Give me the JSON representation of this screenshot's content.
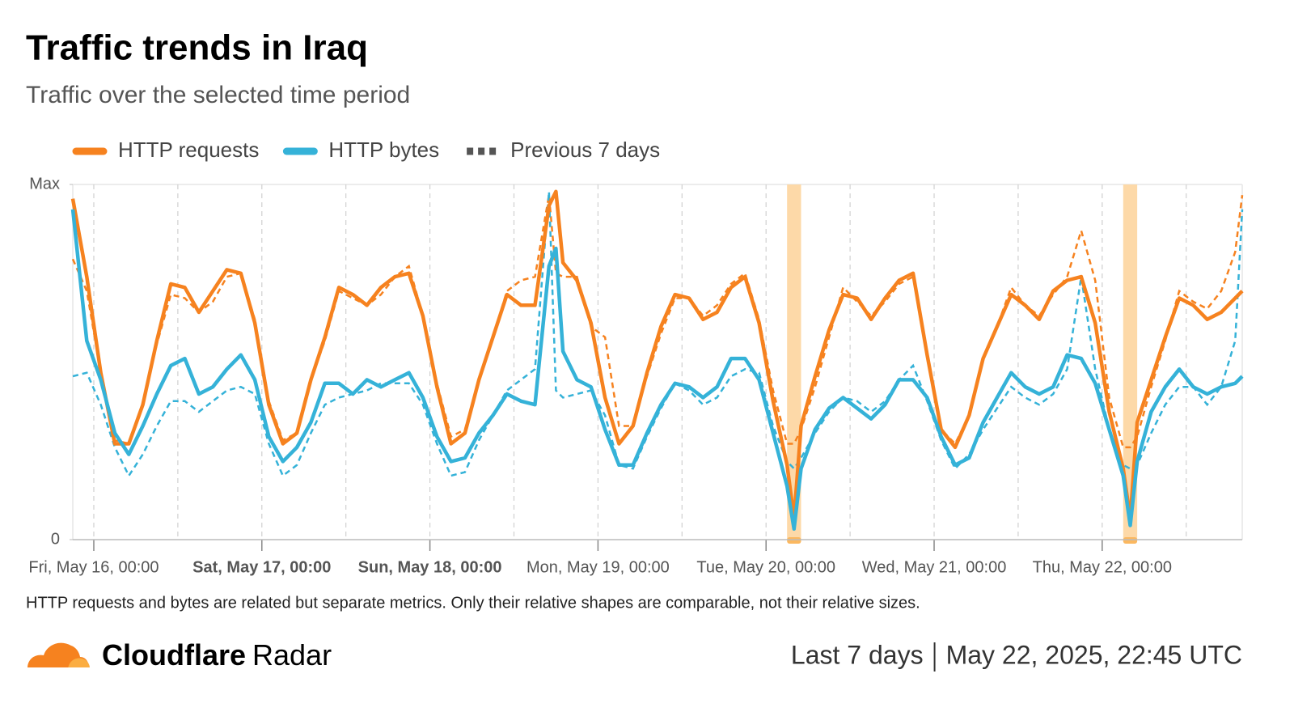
{
  "chart_data": {
    "type": "line",
    "title": "Traffic trends in Iraq",
    "subtitle": "Traffic over the selected time period",
    "previous_label": "Previous 7 days",
    "note": "HTTP requests and bytes are related but separate metrics. Only their relative shapes are comparable, not their relative sizes.",
    "brand": {
      "bold": "Cloudflare",
      "regular": "Radar"
    },
    "period": "Last 7 days",
    "timestamp": "May 22, 2025, 22:45 UTC",
    "xlim": [
      -3,
      164
    ],
    "ylim": [
      0,
      1
    ],
    "yticks": [
      0,
      {
        "value": 1,
        "label": "Max"
      }
    ],
    "xticks": [
      {
        "value": 0,
        "label": "Fri, May 16, 00:00"
      },
      {
        "value": 24,
        "label": "Sat, May 17, 00:00",
        "bold": true
      },
      {
        "value": 48,
        "label": "Sun, May 18, 00:00",
        "bold": true
      },
      {
        "value": 72,
        "label": "Mon, May 19, 00:00"
      },
      {
        "value": 96,
        "label": "Tue, May 20, 00:00"
      },
      {
        "value": 120,
        "label": "Wed, May 21, 00:00"
      },
      {
        "value": 144,
        "label": "Thu, May 22, 00:00"
      }
    ],
    "grid": true,
    "highlights": [
      [
        99,
        101
      ],
      [
        147,
        149
      ]
    ],
    "highlight_color": "#fdd9a8",
    "x": [
      -3,
      -1,
      1,
      3,
      5,
      7,
      9,
      11,
      13,
      15,
      17,
      19,
      21,
      23,
      25,
      27,
      29,
      31,
      33,
      35,
      37,
      39,
      41,
      43,
      45,
      47,
      49,
      51,
      53,
      55,
      57,
      59,
      61,
      63,
      65,
      66,
      67,
      69,
      71,
      73,
      75,
      77,
      79,
      81,
      83,
      85,
      87,
      89,
      91,
      93,
      95,
      97,
      99,
      100,
      101,
      103,
      105,
      107,
      109,
      111,
      113,
      115,
      117,
      119,
      121,
      123,
      125,
      127,
      129,
      131,
      133,
      135,
      137,
      139,
      141,
      143,
      145,
      147,
      148,
      149,
      151,
      153,
      155,
      157,
      159,
      161,
      163,
      164
    ],
    "series": [
      {
        "name": "HTTP requests",
        "color": "#f6821f",
        "values": [
          0.96,
          0.74,
          0.47,
          0.27,
          0.27,
          0.38,
          0.56,
          0.72,
          0.71,
          0.64,
          0.7,
          0.76,
          0.75,
          0.61,
          0.38,
          0.27,
          0.3,
          0.45,
          0.57,
          0.71,
          0.69,
          0.66,
          0.71,
          0.74,
          0.75,
          0.63,
          0.43,
          0.27,
          0.3,
          0.45,
          0.57,
          0.69,
          0.66,
          0.66,
          0.94,
          0.98,
          0.78,
          0.73,
          0.61,
          0.4,
          0.27,
          0.32,
          0.47,
          0.6,
          0.69,
          0.68,
          0.62,
          0.64,
          0.71,
          0.74,
          0.61,
          0.39,
          0.21,
          0.06,
          0.32,
          0.46,
          0.59,
          0.69,
          0.68,
          0.62,
          0.68,
          0.73,
          0.75,
          0.52,
          0.31,
          0.26,
          0.35,
          0.51,
          0.6,
          0.69,
          0.66,
          0.62,
          0.7,
          0.73,
          0.74,
          0.61,
          0.36,
          0.2,
          0.06,
          0.33,
          0.45,
          0.57,
          0.68,
          0.66,
          0.62,
          0.64,
          0.68,
          0.7
        ],
        "previous_values": [
          0.79,
          0.7,
          0.47,
          0.28,
          0.27,
          0.38,
          0.55,
          0.69,
          0.68,
          0.64,
          0.67,
          0.74,
          0.75,
          0.62,
          0.39,
          0.28,
          0.3,
          0.45,
          0.56,
          0.7,
          0.68,
          0.66,
          0.69,
          0.74,
          0.77,
          0.63,
          0.44,
          0.29,
          0.31,
          0.45,
          0.57,
          0.7,
          0.73,
          0.74,
          0.97,
          0.75,
          0.74,
          0.74,
          0.6,
          0.57,
          0.32,
          0.32,
          0.46,
          0.58,
          0.68,
          0.68,
          0.63,
          0.66,
          0.72,
          0.75,
          0.62,
          0.42,
          0.27,
          0.27,
          0.31,
          0.43,
          0.57,
          0.71,
          0.67,
          0.63,
          0.67,
          0.72,
          0.74,
          0.53,
          0.31,
          0.27,
          0.35,
          0.51,
          0.6,
          0.71,
          0.66,
          0.63,
          0.69,
          0.74,
          0.87,
          0.73,
          0.4,
          0.26,
          0.26,
          0.29,
          0.43,
          0.56,
          0.7,
          0.67,
          0.65,
          0.7,
          0.81,
          0.97
        ]
      },
      {
        "name": "HTTP bytes",
        "color": "#35b2d8",
        "values": [
          0.93,
          0.56,
          0.45,
          0.3,
          0.24,
          0.32,
          0.41,
          0.49,
          0.51,
          0.41,
          0.43,
          0.48,
          0.52,
          0.45,
          0.29,
          0.22,
          0.26,
          0.33,
          0.44,
          0.44,
          0.41,
          0.45,
          0.43,
          0.45,
          0.47,
          0.4,
          0.29,
          0.22,
          0.23,
          0.3,
          0.35,
          0.41,
          0.39,
          0.38,
          0.77,
          0.82,
          0.53,
          0.45,
          0.43,
          0.31,
          0.21,
          0.21,
          0.3,
          0.38,
          0.44,
          0.43,
          0.4,
          0.43,
          0.51,
          0.51,
          0.45,
          0.3,
          0.15,
          0.03,
          0.2,
          0.31,
          0.37,
          0.4,
          0.37,
          0.34,
          0.38,
          0.45,
          0.45,
          0.4,
          0.29,
          0.21,
          0.23,
          0.33,
          0.4,
          0.47,
          0.43,
          0.41,
          0.43,
          0.52,
          0.51,
          0.44,
          0.31,
          0.18,
          0.04,
          0.22,
          0.36,
          0.43,
          0.48,
          0.43,
          0.41,
          0.43,
          0.44,
          0.46
        ],
        "previous_values": [
          0.46,
          0.47,
          0.38,
          0.26,
          0.18,
          0.24,
          0.32,
          0.39,
          0.39,
          0.36,
          0.39,
          0.42,
          0.43,
          0.41,
          0.27,
          0.18,
          0.21,
          0.3,
          0.38,
          0.4,
          0.41,
          0.42,
          0.44,
          0.44,
          0.44,
          0.38,
          0.27,
          0.18,
          0.19,
          0.28,
          0.35,
          0.42,
          0.45,
          0.48,
          0.98,
          0.42,
          0.4,
          0.41,
          0.42,
          0.35,
          0.21,
          0.2,
          0.29,
          0.37,
          0.44,
          0.42,
          0.38,
          0.4,
          0.46,
          0.48,
          0.47,
          0.32,
          0.22,
          0.2,
          0.23,
          0.3,
          0.36,
          0.4,
          0.39,
          0.36,
          0.39,
          0.45,
          0.49,
          0.39,
          0.28,
          0.2,
          0.24,
          0.31,
          0.37,
          0.43,
          0.4,
          0.38,
          0.41,
          0.48,
          0.74,
          0.48,
          0.31,
          0.21,
          0.2,
          0.21,
          0.3,
          0.38,
          0.43,
          0.43,
          0.38,
          0.43,
          0.56,
          0.93
        ]
      }
    ]
  }
}
